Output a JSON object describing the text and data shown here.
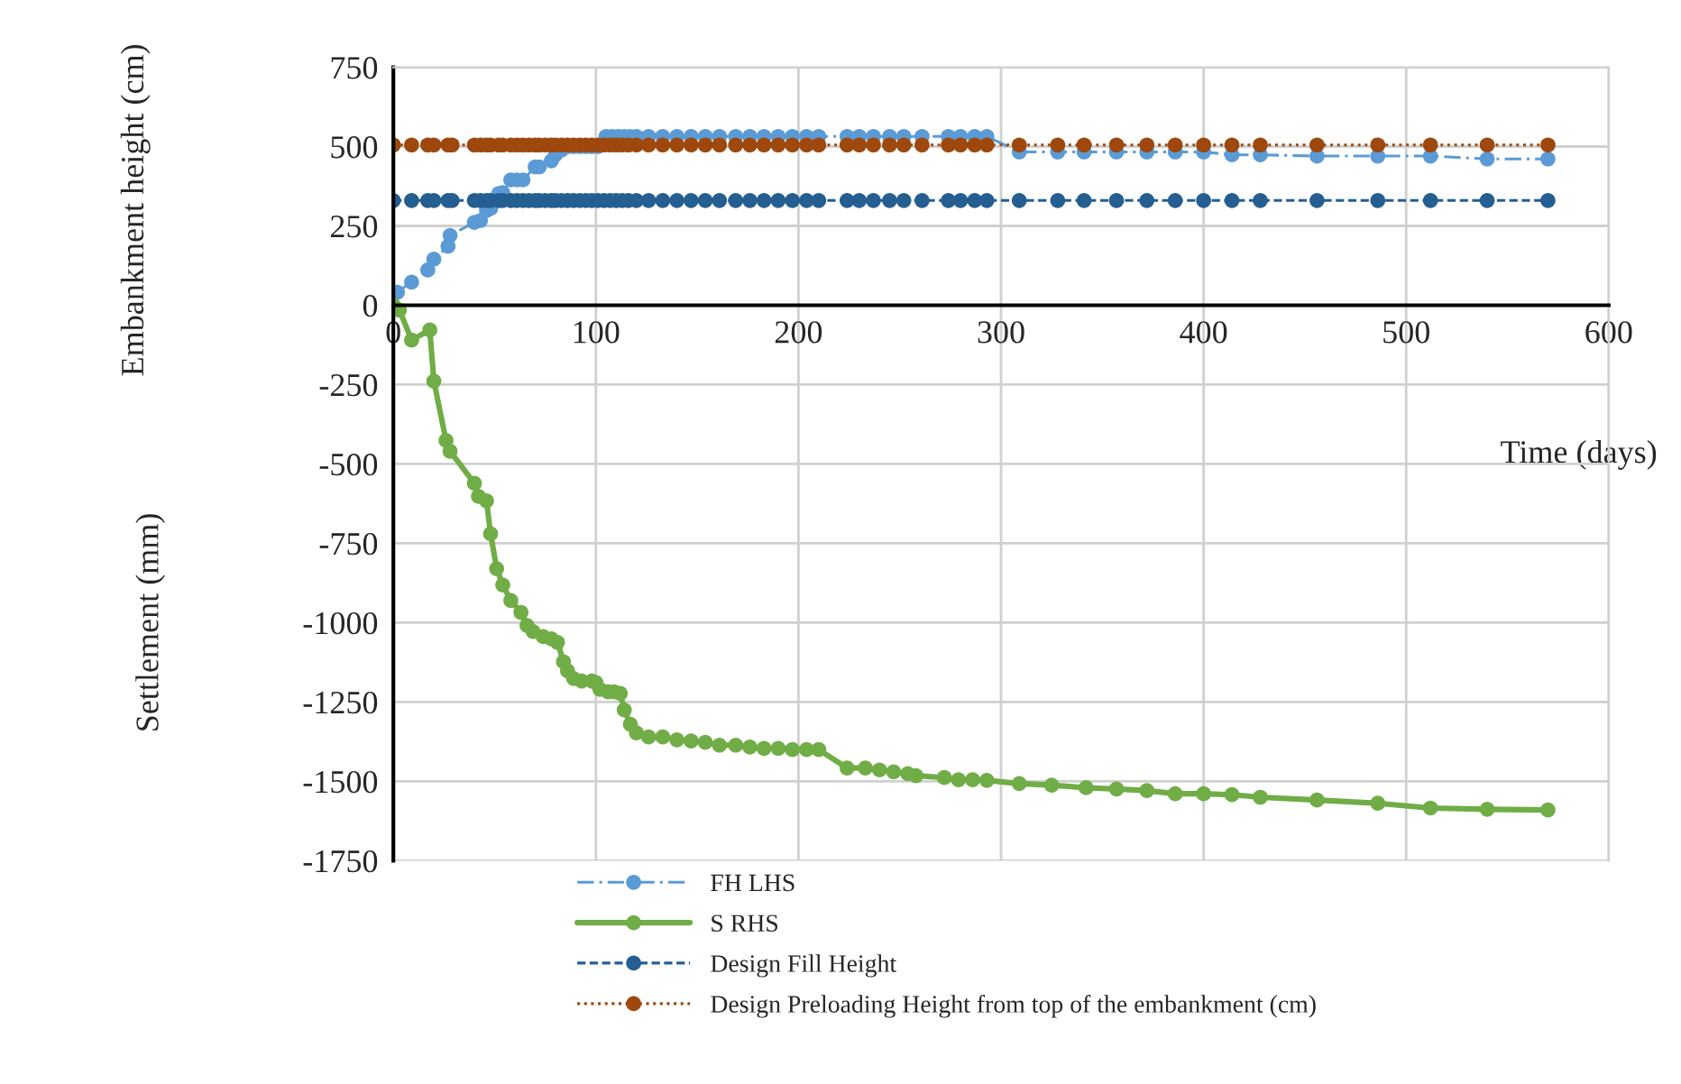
{
  "chart_data": {
    "type": "line",
    "xlabel": "Time (days)",
    "ylabel": "Embankment height (cm)",
    "annotations": [
      "Settlement (mm)"
    ],
    "xlim": [
      0,
      600
    ],
    "xticks": [
      0,
      100,
      200,
      300,
      400,
      500,
      600
    ],
    "ylim": [
      -1750,
      750
    ],
    "yticks": [
      -1750,
      -1500,
      -1250,
      -1000,
      -750,
      -500,
      -250,
      0,
      250,
      500,
      750
    ],
    "grid": true,
    "legend": "bottom",
    "marker": "circle",
    "series": [
      {
        "name": "FH LHS",
        "color": "#5b9bd5",
        "line_style": "dashdot",
        "x": [
          2,
          9,
          17,
          20,
          27,
          28,
          40,
          43,
          46,
          48,
          52,
          54,
          58,
          61,
          64,
          70,
          72,
          78,
          80,
          83,
          86,
          89,
          92,
          95,
          98,
          101,
          105,
          108,
          111,
          114,
          117,
          120,
          126,
          133,
          140,
          147,
          154,
          161,
          169,
          176,
          183,
          190,
          197,
          204,
          210,
          224,
          230,
          237,
          245,
          252,
          261,
          274,
          280,
          287,
          293,
          309,
          328,
          341,
          357,
          372,
          386,
          400,
          414,
          428,
          456,
          486,
          512,
          540,
          570
        ],
        "values": [
          41,
          73,
          111,
          145,
          186,
          220,
          261,
          267,
          299,
          305,
          352,
          355,
          395,
          395,
          395,
          436,
          436,
          455,
          474,
          489,
          500,
          500,
          500,
          500,
          500,
          500,
          532,
          532,
          532,
          532,
          532,
          532,
          532,
          532,
          532,
          532,
          532,
          532,
          532,
          532,
          532,
          532,
          532,
          532,
          532,
          532,
          532,
          532,
          532,
          532,
          532,
          532,
          532,
          532,
          532,
          483,
          483,
          483,
          483,
          483,
          483,
          483,
          474,
          474,
          470,
          470,
          470,
          461,
          461
        ]
      },
      {
        "name": "S RHS",
        "color": "#70ad47",
        "line_style": "solid",
        "x": [
          0,
          3,
          9,
          18,
          20,
          26,
          28,
          40,
          42,
          46,
          48,
          51,
          54,
          58,
          63,
          66,
          69,
          74,
          78,
          81,
          84,
          86,
          89,
          93,
          98,
          100,
          102,
          106,
          109,
          112,
          114,
          117,
          120,
          126,
          133,
          140,
          147,
          154,
          161,
          169,
          176,
          183,
          190,
          197,
          204,
          210,
          224,
          233,
          240,
          247,
          254,
          258,
          272,
          279,
          286,
          293,
          309,
          325,
          342,
          357,
          372,
          386,
          400,
          414,
          428,
          456,
          486,
          512,
          540,
          570
        ],
        "values": [
          0,
          -15,
          -110,
          -78,
          -239,
          -426,
          -460,
          -561,
          -602,
          -616,
          -720,
          -830,
          -881,
          -930,
          -968,
          -1009,
          -1028,
          -1044,
          -1051,
          -1062,
          -1123,
          -1152,
          -1176,
          -1184,
          -1184,
          -1189,
          -1210,
          -1218,
          -1218,
          -1223,
          -1275,
          -1320,
          -1347,
          -1360,
          -1360,
          -1369,
          -1373,
          -1377,
          -1386,
          -1386,
          -1392,
          -1396,
          -1396,
          -1400,
          -1400,
          -1400,
          -1458,
          -1458,
          -1464,
          -1470,
          -1476,
          -1482,
          -1488,
          -1495,
          -1495,
          -1497,
          -1507,
          -1512,
          -1520,
          -1524,
          -1529,
          -1539,
          -1539,
          -1542,
          -1550,
          -1559,
          -1569,
          -1584,
          -1588,
          -1590
        ]
      },
      {
        "name": "Design Fill Height",
        "color": "#255e91",
        "line_style": "dashed",
        "x": [
          0,
          9,
          17,
          20,
          27,
          29,
          40,
          43,
          46,
          48,
          52,
          54,
          58,
          61,
          64,
          67,
          70,
          72,
          75,
          78,
          80,
          83,
          86,
          89,
          92,
          95,
          98,
          101,
          104,
          107,
          110,
          113,
          116,
          120,
          126,
          133,
          140,
          147,
          154,
          161,
          169,
          176,
          183,
          190,
          197,
          204,
          210,
          224,
          230,
          237,
          245,
          252,
          261,
          274,
          280,
          287,
          293,
          309,
          328,
          341,
          357,
          372,
          386,
          400,
          414,
          428,
          456,
          486,
          512,
          540,
          570
        ],
        "values": [
          330,
          330,
          330,
          330,
          330,
          330,
          330,
          330,
          330,
          330,
          330,
          330,
          330,
          330,
          330,
          330,
          330,
          330,
          330,
          330,
          330,
          330,
          330,
          330,
          330,
          330,
          330,
          330,
          330,
          330,
          330,
          330,
          330,
          330,
          330,
          330,
          330,
          330,
          330,
          330,
          330,
          330,
          330,
          330,
          330,
          330,
          330,
          330,
          330,
          330,
          330,
          330,
          330,
          330,
          330,
          330,
          330,
          330,
          330,
          330,
          330,
          330,
          330,
          330,
          330,
          330,
          330,
          330,
          330,
          330,
          330
        ]
      },
      {
        "name": "Design Preloading Height from top of the embankment (cm)",
        "color": "#9e480e",
        "line_style": "dotted",
        "x": [
          0,
          9,
          17,
          20,
          27,
          29,
          40,
          43,
          46,
          48,
          52,
          54,
          58,
          61,
          64,
          67,
          70,
          72,
          75,
          78,
          80,
          83,
          86,
          89,
          92,
          95,
          98,
          101,
          104,
          107,
          110,
          113,
          116,
          120,
          126,
          133,
          140,
          147,
          154,
          161,
          169,
          176,
          183,
          190,
          197,
          204,
          210,
          224,
          230,
          237,
          245,
          252,
          261,
          274,
          280,
          287,
          293,
          309,
          328,
          341,
          357,
          372,
          386,
          400,
          414,
          428,
          456,
          486,
          512,
          540,
          570
        ],
        "values": [
          505,
          505,
          505,
          505,
          505,
          505,
          505,
          505,
          505,
          505,
          505,
          505,
          505,
          505,
          505,
          505,
          505,
          505,
          505,
          505,
          505,
          505,
          505,
          505,
          505,
          505,
          505,
          505,
          505,
          505,
          505,
          505,
          505,
          505,
          505,
          505,
          505,
          505,
          505,
          505,
          505,
          505,
          505,
          505,
          505,
          505,
          505,
          505,
          505,
          505,
          505,
          505,
          505,
          505,
          505,
          505,
          505,
          505,
          505,
          505,
          505,
          505,
          505,
          505,
          505,
          505,
          505,
          505,
          505,
          505,
          505
        ]
      }
    ]
  }
}
